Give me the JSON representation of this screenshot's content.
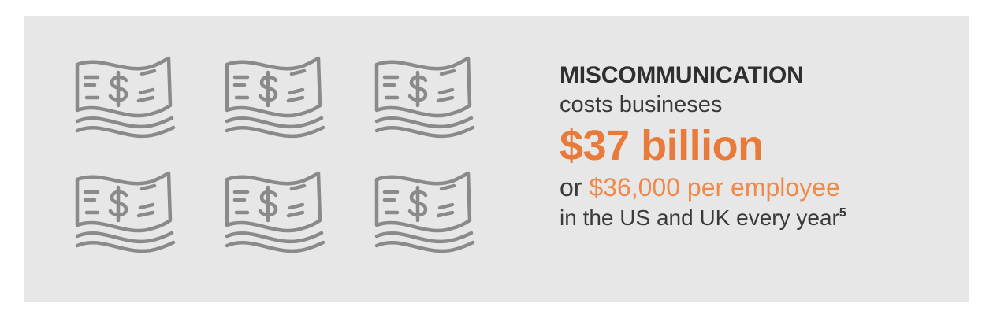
{
  "graphic": {
    "icons": [
      "money-bill-icon",
      "money-bill-icon",
      "money-bill-icon",
      "money-bill-icon",
      "money-bill-icon",
      "money-bill-icon"
    ],
    "icon_color": "#8a8a8a"
  },
  "text": {
    "headline": "MISCOMMUNICATION",
    "subline": "costs busineses",
    "amount": "$37 billion",
    "per_prefix": "or ",
    "per_employee": "$36,000 per employee",
    "last_line": "in the US and UK every year",
    "footnote": "5"
  },
  "colors": {
    "background": "#e7e7e8",
    "accent": "#e87b3a",
    "text": "#333333"
  }
}
